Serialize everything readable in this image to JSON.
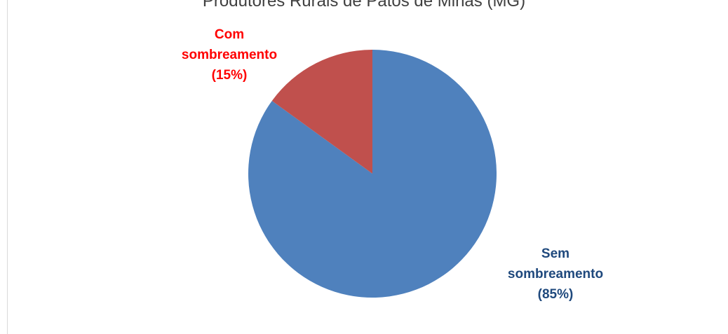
{
  "chart_data": {
    "type": "pie",
    "title": "Produtores Rurais de Patos de Minas (MG)",
    "slices": [
      {
        "label_lines": [
          "Sem",
          "sombreamento",
          "(85%)"
        ],
        "value": 85,
        "color": "#4f81bd",
        "label_color": "#1f497d"
      },
      {
        "label_lines": [
          "Com",
          "sombreamento",
          "(15%)"
        ],
        "value": 15,
        "color": "#c0504d",
        "label_color": "#ff0000"
      }
    ],
    "legend": "none"
  }
}
